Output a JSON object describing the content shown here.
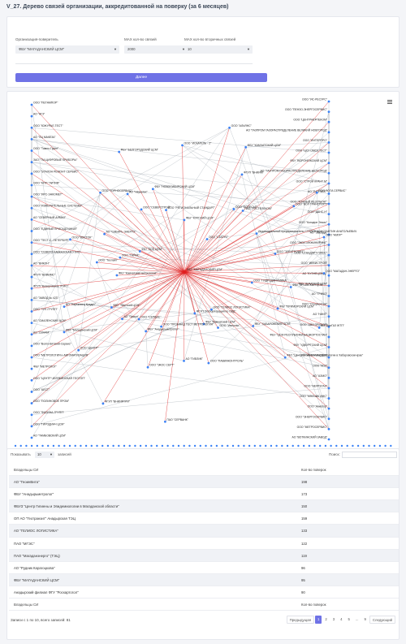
{
  "page": {
    "title": "V_27. Дерево связей организации, аккредитованной на поверку (за 6 месяцев)"
  },
  "filters": {
    "org_label": "Организация-поверитель",
    "org_value": "ФБУ \"МАГАДАНСКИЙ ЦСМ\"",
    "max_links_label": "MAX кол-во связей",
    "max_links_value": "2000",
    "max_secondary_label": "MAX кол-во вторичных связей",
    "max_secondary_value": "10",
    "submit_label": "Далее"
  },
  "graph": {
    "center_label": "ФБУ \"МАГАДАНСКИЙ ЦСМ\"",
    "left_nodes": [
      "ООО \"ПЕТАМПОР\"",
      "АО \"АГЗ\"",
      "ООО \"ЮЖУРАЛ-ТЕСТ\"",
      "АО \"ПЦ МАКЕЗА\"",
      "ООО \"Тампо-Групп\"",
      "ЗАО \"ТМ-ЦИФРОВЫЕ ПРИБОРЫ\"",
      "ООО \"ЭТАЛОН РЕМОНТ СЕРВИС\"",
      "ООО \"НПП \"ЛИТИЯ\"",
      "ООО \"ИРС-ЭНКОМЕТ\"",
      "ООО \"ИЗМЕРИТЕЛЬНЫЕ СИСТЕМЫ\"",
      "АО \"СЕВЕРНЫЙ АЛМАЗ\"",
      "ООО \"ЕДИНЫЙ ПРИСАДОЧНЫЙ\"",
      "ООО \"ТЕСТ-С.-ПЕТЕРБУРГ\"",
      "ООО \"СЕВЕРО-КАВКАЗСКАЯ УТИС\"",
      "АО \"ВИКОН\"",
      "ФГУП \"ВНИИМС\"",
      "ФГУП \"Кемеровское УТИС\"",
      "АО \"ЗАВОД № 423\"",
      "ООО \"ТНГ-ГРУПП\"",
      "АО \"СМАЛЕНСКИЙ ЦСМ\"",
      "АО \"ОЗНАМ\"",
      "ООО \"Волго-Вятский-Сервис\"",
      "ООО \"МЕТРОЛОГИЯ и АВТОМАТИЗАЦИЯ\"",
      "ФБУ \"МЕТРОЛОГ\"",
      "ООО \"ЦЕНТР ЧЕЛЯБИНСКАЯ ГЕОТОП\"",
      "ООО \"АЕСТ\"",
      "ООО \"ПОЛИНОВОЕ ПРОМ\"",
      "ООО \"ФИЛИНА-ГРУПП\"",
      "ООО \"ГИРОДИНЧ ЦСМ\"",
      "АО \"ТАМБОВСКИЙ ЦСМ\""
    ],
    "right_nodes": [
      "ООО \"ИС-РЕСУРС\"",
      "ООО \"ПЕНЗО-ЭНЕРГОСЕРВИС\"",
      "ООО \"ЦЕНТРНЕФТЕКОМ\"",
      "АО \"ГАЗПРОМ ГАЗОРАСПРЕДЕЛЕНИЕ ВЕЛИКИЙ НОВГОРОД\"",
      "ООО \"ИНТЕРПРО\"",
      "ООО \"ЦСУ ОМСК ТЕСТ\"",
      "ФБУ \"ВОРОНЕЖСКИЙ ЦСМ\"",
      "АО \"ГАЗПРОМ ГАЗОРАСПРЕДЕЛЕНИЕ БЕЛГОРОД\"",
      "ООО \"СТРОЙ КРАНТ М\"",
      "АО \"ПАТРИОТ\"",
      "ООО \"ТОЧНЫЙ РЕЗУЛЬТАТ\"",
      "ООО \"ДАНС-Н\"",
      "ООО \"Концерн Энсис\"",
      "АО \"ЗВЕЗДА\"",
      "ООО \"ЭКОЛ-ИНЖИНИРИНГ\"",
      "ООО \"СТАНДАРТ-ПЛЮС\"",
      "ООО \"ИЕВИСТРОЙ\"",
      "АО \"КУЗНЕЦОВ Д.\"",
      "ФБУ \"ТОМСКИЙ ЦСМ\"",
      "АО \"ГРИКО\"",
      "ООО \"Спецмонтаж\"",
      "АО \"НИИТ\"",
      "ООО \"АВИ ПРИБОР\"",
      "ФБУ \"ЦСМ РЕСПУБЛИКИ БАШКОРТОСТАН\"",
      "ФБУ \"УДМУРТСКИЙ ЦСМ\"",
      "АО \"АКТИ-МАСТЕР\"",
      "ООО \"АГИ\"",
      "АО \"АЗМО\"",
      "ООО \"НЕФТЕГАЗ\"",
      "ООО \"КЛЮЧИК ИМС\"",
      "ООО \"Авиатор\"",
      "ООО \"ЭНЕРГОСЕРВИС\"",
      "ООО \"МЕТРОСЕРВИС\"",
      "АО \"ВОТКИНСКИЙ ЗАВОД\""
    ],
    "inner_nodes": [
      "ФБУ \"КРЫМСКИЙ ЦСМ\"",
      "ООО \"ГИДРОДИНАМИКА\"",
      "ФБУ \"ПРИМОРСКИЙ ЦСМ\"",
      "АО \"ВолГАЗ ЖТП\"",
      "ФБУ \"ХАБАРОВСКИЙ ЦСМ\"",
      "ФБУ \"Центр гигиены и эпидемиологии в Хабаровском крае\"",
      "ООО \"ГЕЛИОС ЛОГИСТИКА\"",
      "ООО \"Импульс\"",
      "ФБУ \"Камчатский ЦСМ\"",
      "ООО \"ПАВИАКОНТРОЛЬ\"",
      "ФГУП \"Госкорпорация по ОВД\"",
      "ПАО \"СЕРВАНК\"",
      "АО \"ГИБЛИК\"",
      "ООО \"ПРОМНАД ТЕСТ МЕТРОЛОГИЯ\"",
      "ООО \"ЭКОС СЕРТ\"",
      "ФБУ \"Анадырьметролог\"",
      "ФГУП \"ВНИИФТРИ\"",
      "ООО \"СЕРВИС\"",
      "АО \"Орион\"",
      "ООО \"ЦЕНТР\"",
      "ФБУ \"Якутский ЦСМ\"",
      "ФБУ \"Магаданский ЦСМ\"",
      "АО \"Харьковец Кредит\"",
      "ФКУ \"Камчатская метрология\"",
      "ООО \"Техлайт\"",
      "ООО \"ВОСТОК\"",
      "ООО \"ТАЙГА\"",
      "ФБУ \"ВСЕ ЦСМ\"",
      "АО \"СИБИРЬ ЭНЕРГО\"",
      "ООО \"ГОРНОСЕРВИС\"",
      "ООО \"СЕВЕРСТРОЙ\"",
      "АО \"Наукатех\"",
      "ФБУ \"БЕЛГОРОДСКИЙ ЦСМ\"",
      "ФБУ \"НОВОСИБИРСКИЙ ЦСМ\"",
      "ООО \"РЕГИОНАЛЬНЫЙ СТАНДАРТ\"",
      "ФБУ \"КУРСКИЙ ЦСМ\"",
      "ООО \"ИСКАТЕЛЬ - 2\"",
      "ООО \"АЛЬЯНС\"",
      "ФБУ \"КАМЧАТСКИЙ ЦСМ\"",
      "ФГУП \"ВНИИМ\"",
      "ООО \"СТАТУС\"",
      "ООО \"ПОЛЕСЬЕ\"",
      "ПАО \"РОСТЕЛЕКОМ\"",
      "ООО \"ВОЛ ТРАНСПОРТ\"",
      "ООО \"ЮГИ-СЕРВИС\"",
      "Индивидуальный предприниматель СТЕПИН КОНСТАНТИН АНАТОЛЬЕВИЧ",
      "ООО \"ЭЛЕКТРОМЕТ\"",
      "ООО \"АМУР\"",
      "ООО \"МАГАДАН-ЭНЕРГО\""
    ]
  },
  "table_controls": {
    "show_label": "Показывать",
    "show_value": "10",
    "entries_label": "записей",
    "search_label": "Поиск:"
  },
  "table": {
    "headers": [
      "Владельцы СИ",
      "Кол-во поверок"
    ],
    "rows": [
      [
        "АО \"ГеоинВита\"",
        "198"
      ],
      [
        "ФБУ \"Анадырьметролог\"",
        "173"
      ],
      [
        "ФБУЗ \"Центр Гигиены и Эпидемиологии в Магаданской области\"",
        "150"
      ],
      [
        "ОП АО \"Геотранзит\" Анадырская ТЭЦ",
        "159"
      ],
      [
        "АО \"ГЕЛИОС ЛОГИСТИКА\"",
        "133"
      ],
      [
        "ПАО \"МГЭС\"",
        "122"
      ],
      [
        "ПАО \"Магаданэнерго\" (ТЭЦ)",
        "119"
      ],
      [
        "АО \"Рудник Карагоцкова\"",
        "96"
      ],
      [
        "ФБУ \"МАГАДАНСКИЙ ЦСМ\"",
        "95"
      ],
      [
        "Анадырский филиал ФГУ \"Роскартогол\"",
        "90"
      ]
    ],
    "footer": [
      "Владельцы СИ",
      "Кол-во поверок"
    ]
  },
  "pagination": {
    "info": "Записи с 1 по 10, всего записей: 81",
    "prev": "Предыдущая",
    "pages": [
      "1",
      "2",
      "3",
      "4",
      "5",
      "...",
      "9"
    ],
    "next": "Следующий",
    "active": "1"
  },
  "colors": {
    "accent": "#6f72e6",
    "edge_primary": "#e02020",
    "edge_secondary": "#9aa3ad",
    "node": "#3b82f6"
  }
}
